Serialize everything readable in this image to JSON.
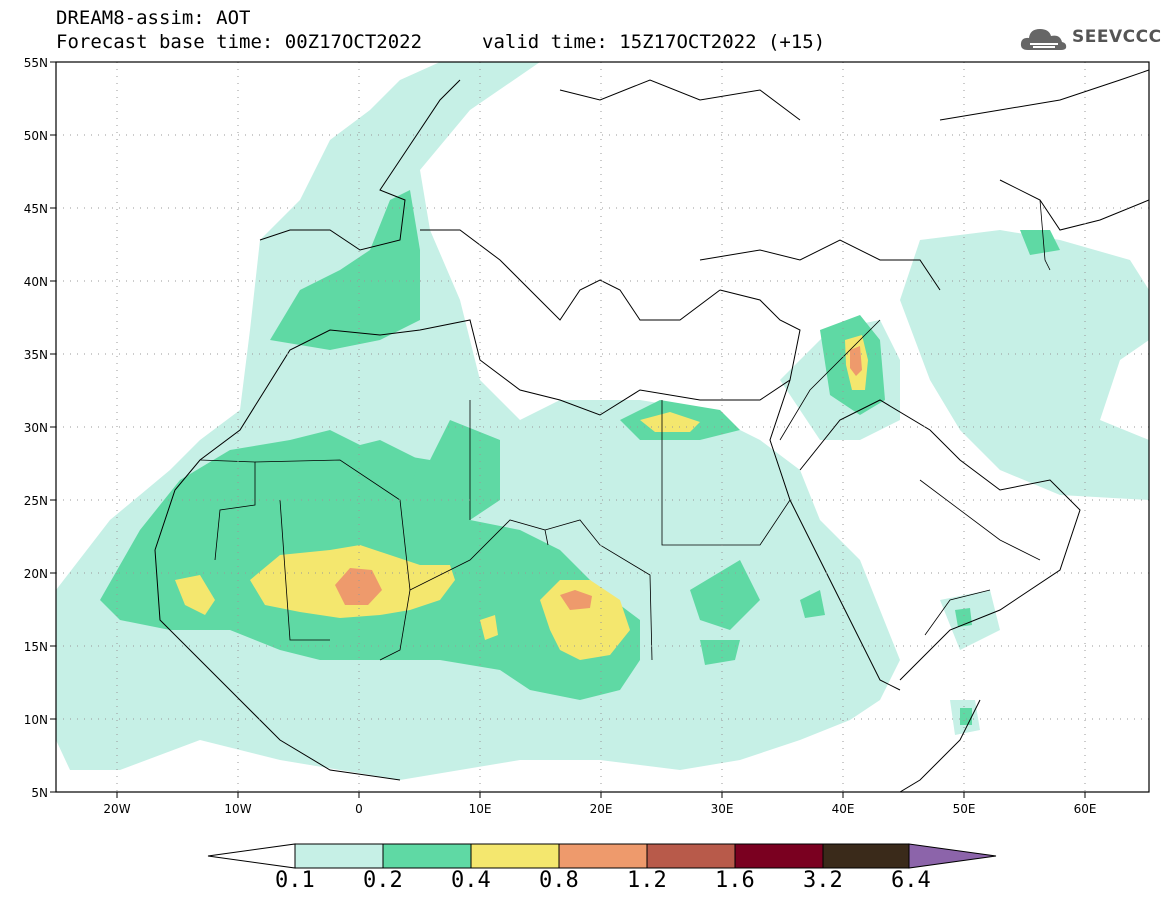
{
  "header": {
    "model_line": "DREAM8-assim: AOT",
    "base_time": "Forecast base time: 00Z17OCT2022",
    "valid_time": "valid time: 15Z17OCT2022 (+15)",
    "logo_text": "SEEVCCC"
  },
  "map": {
    "lat_ticks": [
      "55N",
      "50N",
      "45N",
      "40N",
      "35N",
      "30N",
      "25N",
      "20N",
      "15N",
      "10N",
      "5N"
    ],
    "lon_ticks": [
      "20W",
      "10W",
      "0",
      "10E",
      "20E",
      "30E",
      "40E",
      "50E",
      "60E"
    ],
    "extent": {
      "lon": [
        -25,
        65
      ],
      "lat": [
        5,
        55
      ]
    }
  },
  "colorbar": {
    "labels": [
      "0.1",
      "0.2",
      "0.4",
      "0.8",
      "1.2",
      "1.6",
      "3.2",
      "6.4"
    ],
    "colors": [
      "#c6f0e6",
      "#5fd9a4",
      "#f4e76e",
      "#ee9a6c",
      "#b85a4a",
      "#7a0020",
      "#3a2a1a",
      "#8c64aa"
    ]
  }
}
